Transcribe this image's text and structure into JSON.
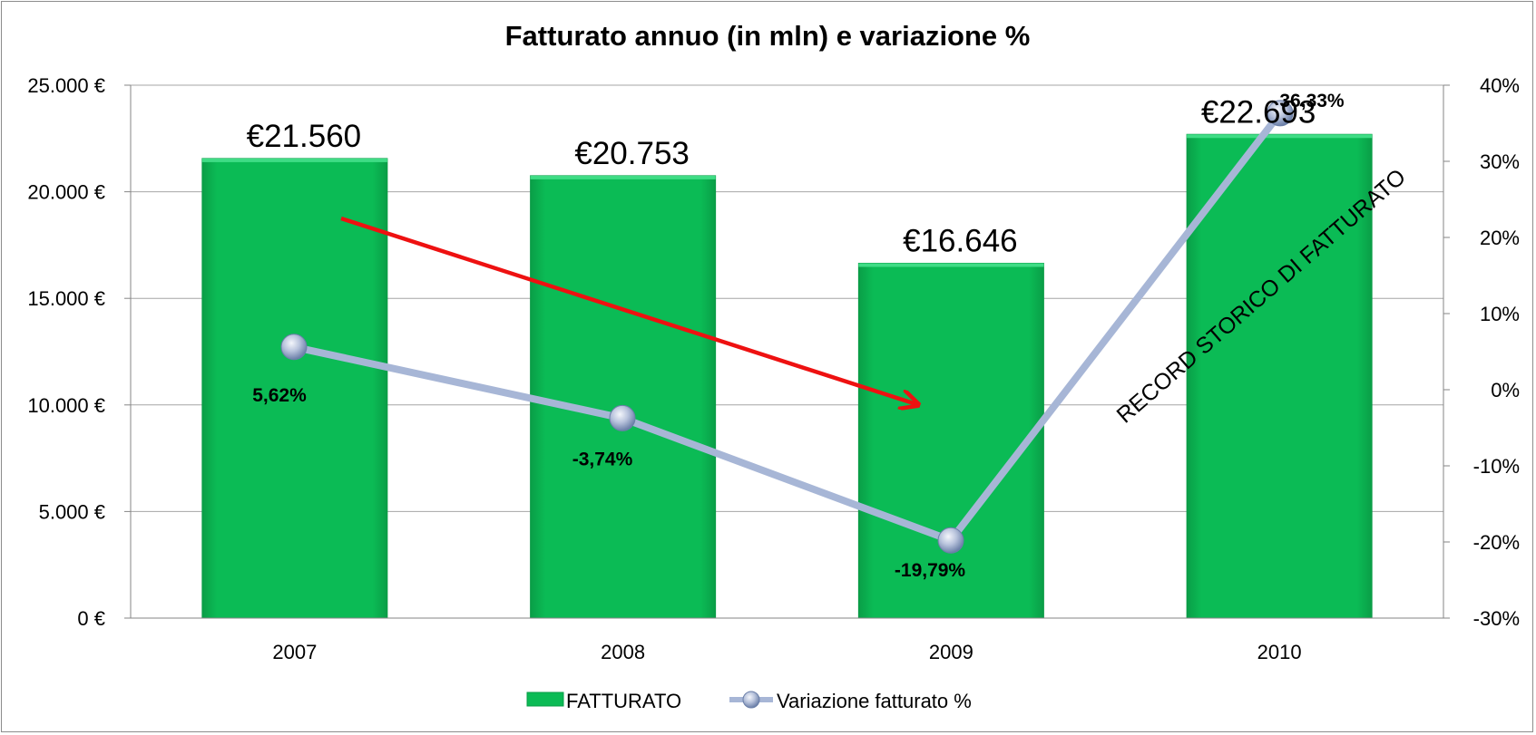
{
  "chart_data": {
    "type": "bar",
    "title": "Fatturato annuo (in mln) e variazione %",
    "categories": [
      "2007",
      "2008",
      "2009",
      "2010"
    ],
    "series": [
      {
        "name": "FATTURATO",
        "kind": "bar",
        "axis": "left",
        "color": "#0BBB55",
        "values": [
          21560,
          20753,
          16646,
          22693
        ],
        "labels": [
          "€21.560",
          "€20.753",
          "€16.646",
          "€22.693"
        ]
      },
      {
        "name": "Variazione fatturato %",
        "kind": "line",
        "axis": "right",
        "color": "#A7B6D6",
        "values": [
          5.62,
          -3.74,
          -19.79,
          36.33
        ],
        "labels": [
          "5,62%",
          "-3,74%",
          "-19,79%",
          "36,33%"
        ]
      }
    ],
    "y_left": {
      "range": [
        0,
        25000
      ],
      "ticks": [
        0,
        5000,
        10000,
        15000,
        20000,
        25000
      ],
      "tick_labels": [
        "0 €",
        "5.000 €",
        "10.000 €",
        "15.000 €",
        "20.000 €",
        "25.000 €"
      ]
    },
    "y_right": {
      "range": [
        -30,
        40
      ],
      "ticks": [
        -30,
        -20,
        -10,
        0,
        10,
        20,
        30,
        40
      ],
      "tick_labels": [
        "-30%",
        "-20%",
        "-10%",
        "0%",
        "10%",
        "20%",
        "30%",
        "40%"
      ]
    },
    "grid": true,
    "legend": {
      "position": "bottom"
    },
    "annotations": {
      "arrow_color": "#EE1111",
      "text": "RECORD STORICO DI FATTURATO"
    }
  }
}
